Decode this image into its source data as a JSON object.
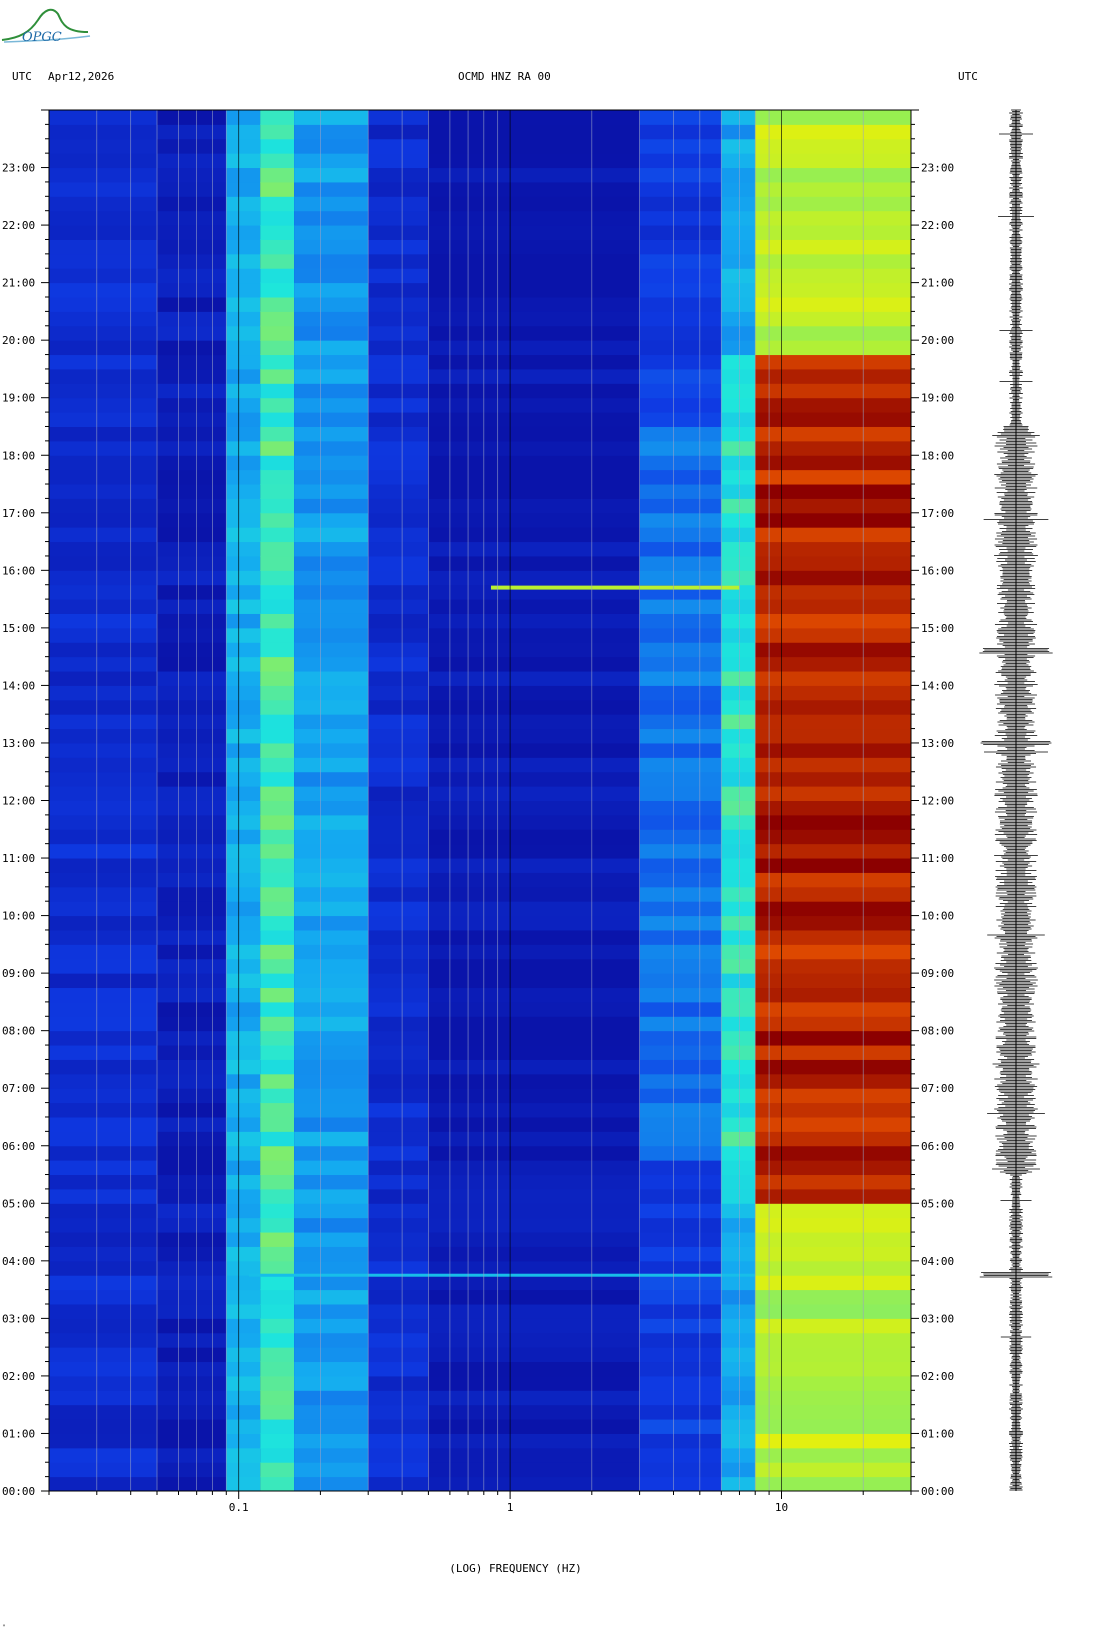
{
  "header": {
    "left_label": "UTC",
    "date": "Apr12,2026",
    "station": "OCMD HNZ RA 00",
    "right_label": "UTC"
  },
  "logo": {
    "text": "OPGC",
    "icon": "observatory-wave-logo-icon"
  },
  "corner_mark": "\"",
  "colors": {
    "low": "#0a1fc8",
    "mid": "#18e0f0",
    "high": "#f0f000",
    "peak": "#8b0000",
    "gridline": "#9aa4c8"
  },
  "chart_data": {
    "type": "heatmap",
    "title": "OCMD HNZ RA 00",
    "xlabel": "(LOG) FREQUENCY (HZ)",
    "ylabel": "UTC",
    "x_scale": "log",
    "xlim": [
      0.02,
      30
    ],
    "x_ticks": [
      {
        "value": 0.1,
        "label": "0.1"
      },
      {
        "value": 1,
        "label": "1"
      },
      {
        "value": 10,
        "label": "10"
      }
    ],
    "ylim": [
      0,
      24
    ],
    "y_ticks": [
      {
        "value": 0,
        "label": "00:00"
      },
      {
        "value": 1,
        "label": "01:00"
      },
      {
        "value": 2,
        "label": "02:00"
      },
      {
        "value": 3,
        "label": "03:00"
      },
      {
        "value": 4,
        "label": "04:00"
      },
      {
        "value": 5,
        "label": "05:00"
      },
      {
        "value": 6,
        "label": "06:00"
      },
      {
        "value": 7,
        "label": "07:00"
      },
      {
        "value": 8,
        "label": "08:00"
      },
      {
        "value": 9,
        "label": "09:00"
      },
      {
        "value": 10,
        "label": "10:00"
      },
      {
        "value": 11,
        "label": "11:00"
      },
      {
        "value": 12,
        "label": "12:00"
      },
      {
        "value": 13,
        "label": "13:00"
      },
      {
        "value": 14,
        "label": "14:00"
      },
      {
        "value": 15,
        "label": "15:00"
      },
      {
        "value": 16,
        "label": "16:00"
      },
      {
        "value": 17,
        "label": "17:00"
      },
      {
        "value": 18,
        "label": "18:00"
      },
      {
        "value": 19,
        "label": "19:00"
      },
      {
        "value": 20,
        "label": "20:00"
      },
      {
        "value": 21,
        "label": "21:00"
      },
      {
        "value": 22,
        "label": "22:00"
      },
      {
        "value": 23,
        "label": "23:00"
      }
    ],
    "minor_ticks_per_hour": 4,
    "frequency_bands": [
      {
        "from": 0.02,
        "to": 0.05,
        "level": 0.12
      },
      {
        "from": 0.05,
        "to": 0.09,
        "level": 0.05
      },
      {
        "from": 0.09,
        "to": 0.12,
        "level": 0.42
      },
      {
        "from": 0.12,
        "to": 0.16,
        "level": 0.58
      },
      {
        "from": 0.16,
        "to": 0.3,
        "level": 0.38
      },
      {
        "from": 0.3,
        "to": 0.5,
        "level": 0.12
      },
      {
        "from": 0.5,
        "to": 3.0,
        "level": 0.02
      },
      {
        "from": 3.0,
        "to": 6.0,
        "level": 0.18
      },
      {
        "from": 6.0,
        "to": 8.0,
        "level": 0.55
      },
      {
        "from": 8.0,
        "to": 30,
        "level": 0.95
      }
    ],
    "notable_event": {
      "time": 15.7,
      "freq_from": 0.85,
      "freq_to": 7.0
    },
    "line_at_hour": 3.75,
    "waveform": {
      "label": "seismogram",
      "peak_hours": [
        3.75,
        13.0,
        14.6
      ],
      "active_from": 5.5,
      "active_to": 18.5
    }
  }
}
